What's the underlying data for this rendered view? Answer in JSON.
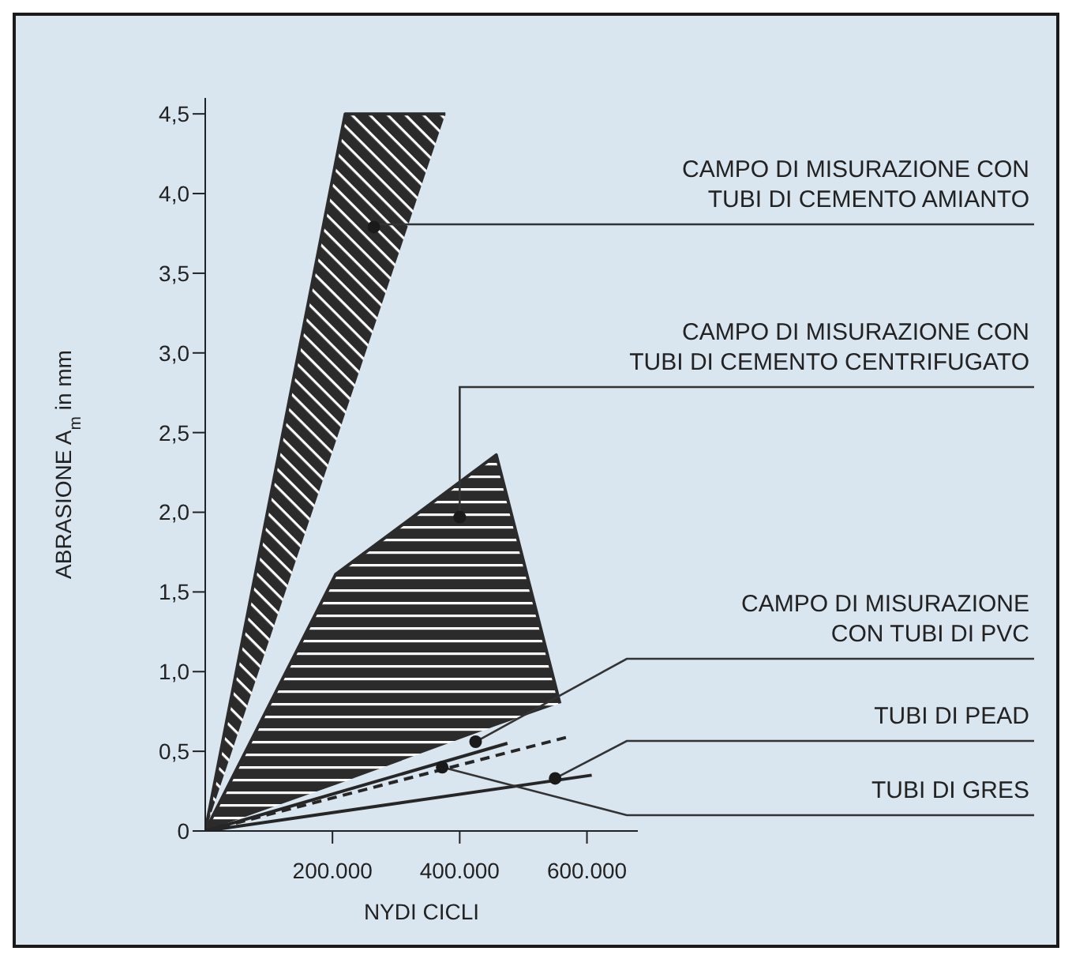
{
  "chart_data": {
    "type": "line",
    "xlabel": "NYDI CICLI",
    "ylabel": "ABRASIONE A$_{m}$ in mm",
    "xlim": [
      0,
      680000
    ],
    "xticks": [
      {
        "value": 200000,
        "label": "200.000"
      },
      {
        "value": 400000,
        "label": "400.000"
      },
      {
        "value": 600000,
        "label": "600.000"
      }
    ],
    "ylim": [
      0,
      4.6
    ],
    "yticks": [
      0,
      {
        "value": 0.5,
        "label": "0,5"
      },
      {
        "value": 1,
        "label": "1,0"
      },
      {
        "value": 1.5,
        "label": "1,5"
      },
      {
        "value": 2,
        "label": "2,0"
      },
      {
        "value": 2.5,
        "label": "2,5"
      },
      {
        "value": 3,
        "label": "3,0"
      },
      {
        "value": 3.5,
        "label": "3,5"
      },
      {
        "value": 4,
        "label": "4,0"
      },
      {
        "value": 4.5,
        "label": "4,5"
      }
    ],
    "grid": false,
    "legend": false,
    "series": [
      {
        "color": "#2b2b2b",
        "line_style": "solid",
        "x": [
          0,
          205000,
          457500,
          557500
        ],
        "values": [
          0,
          1.61,
          2.36,
          0.8
        ],
        "lower": [
          0,
          0.29,
          0.66,
          0.8
        ],
        "upper": [
          0,
          1.61,
          2.36,
          0.8
        ]
      },
      {
        "color": "#2b2b2b",
        "line_style": "solid",
        "x": [
          0,
          220000,
          377500
        ],
        "values": [
          0,
          4.5,
          4.5
        ],
        "lower": [
          0,
          2.62,
          4.5
        ],
        "upper": [
          0,
          4.5,
          4.5
        ]
      },
      {
        "color": "#262626",
        "line_style": "solid",
        "x": [
          0,
          475000
        ],
        "values": [
          0,
          0.55
        ]
      },
      {
        "color": "#262626",
        "line_style": "dashed",
        "x": [
          0,
          570000
        ],
        "values": [
          0,
          0.59
        ]
      },
      {
        "color": "#262626",
        "line_style": "solid",
        "x": [
          0,
          607500
        ],
        "values": [
          0,
          0.35
        ]
      }
    ],
    "annotations": [
      {
        "text": "CAMPO DI MISURAZIONE CON\nTUBI DI CEMENTO AMIANTO",
        "x": 265000,
        "y": 3.79
      },
      {
        "text": "CAMPO DI MISURAZIONE CON\nTUBI DI CEMENTO CENTRIFUGATO",
        "x": 400000,
        "y": 1.97
      },
      {
        "text": "CAMPO DI MISURAZIONE\nCON TUBI DI PVC",
        "x": 425000,
        "y": 0.56
      },
      {
        "text": "TUBI DI PEAD",
        "x": 550000,
        "y": 0.33
      },
      {
        "text": "TUBI DI GRES",
        "x": 372500,
        "y": 0.4
      }
    ]
  }
}
